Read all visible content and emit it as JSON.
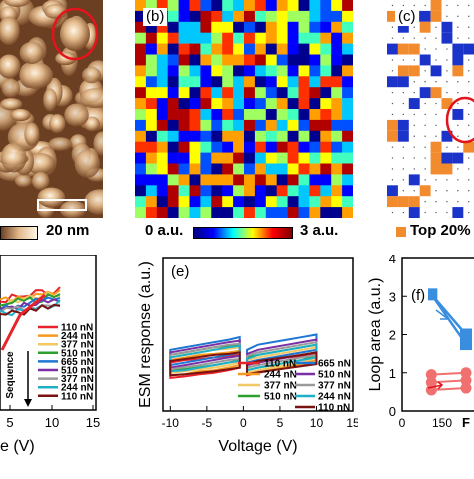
{
  "panels": {
    "a": {
      "scale_bar": "20 nm"
    },
    "b": {
      "label": "(b)",
      "scale_min": "0 a.u.",
      "scale_max": "3 a.u."
    },
    "c": {
      "label": "(c)",
      "legend": "Top 20%"
    },
    "d": {
      "legend": [
        "110 nN",
        "244 nN",
        "377 nN",
        "510 nN",
        "665 nN",
        "510 nN",
        "377 nN",
        "244 nN",
        "110 nN"
      ],
      "sequence_label": "Sequence",
      "xlabel_fragment": "e (V)",
      "xticks": [
        "5",
        "10",
        "15"
      ]
    },
    "e": {
      "label": "(e)",
      "legend_left": [
        "110 nN",
        "244 nN",
        "377 nN",
        "510 nN"
      ],
      "legend_right": [
        "665 nN",
        "510 nN",
        "377 nN",
        "244 nN",
        "110 nN"
      ],
      "xlabel": "Voltage (V)",
      "ylabel": "ESM response (a.u.)",
      "xticks": [
        "-10",
        "-5",
        "0",
        "5",
        "10",
        "15"
      ]
    },
    "f": {
      "label": "(f)",
      "ylabel": "Loop area (a.u.)",
      "yticks": [
        "4",
        "3",
        "2",
        "1",
        "0"
      ],
      "xticks": [
        "0",
        "150"
      ],
      "xlabel_fragment": "F"
    }
  },
  "colors": {
    "110": "#e8232a",
    "244": "#f59a1e",
    "377": "#f2c867",
    "510": "#2ca02c",
    "665": "#1f77d4",
    "510b": "#7b2fa5",
    "377b": "#9a9a9a",
    "244b": "#1fb0c8",
    "110b": "#7a1212",
    "square": "#3a8ee0",
    "circle": "#f07070",
    "top20": "#f28a2e",
    "blue_cell": "#1b33c9"
  },
  "chart_data": [
    {
      "type": "line",
      "panel": "e",
      "xlabel": "Voltage (V)",
      "ylabel": "ESM response (a.u.)",
      "xlim": [
        -11,
        15
      ],
      "ylim": [
        0,
        3
      ],
      "x": [
        -10,
        -8,
        -6,
        -4,
        -2,
        -0.5,
        0.5,
        2,
        4,
        6,
        8,
        10
      ],
      "series": [
        {
          "name": "110 nN",
          "upper": [
            0.95,
            1.0,
            1.02,
            1.05,
            1.08,
            1.1,
            0.9,
            0.95,
            1.0,
            1.05,
            1.08,
            1.12
          ],
          "lower": [
            0.65,
            0.68,
            0.72,
            0.75,
            0.8,
            0.85,
            0.7,
            0.75,
            0.8,
            0.85,
            0.9,
            0.95
          ]
        },
        {
          "name": "244 nN",
          "upper": [
            1.0,
            1.05,
            1.1,
            1.12,
            1.15,
            1.18,
            0.95,
            1.0,
            1.05,
            1.1,
            1.15,
            1.2
          ],
          "lower": [
            0.7,
            0.72,
            0.78,
            0.8,
            0.85,
            0.9,
            0.72,
            0.78,
            0.82,
            0.88,
            0.92,
            1.0
          ]
        },
        {
          "name": "377 nN",
          "upper": [
            1.05,
            1.1,
            1.15,
            1.2,
            1.22,
            1.25,
            1.0,
            1.05,
            1.1,
            1.15,
            1.2,
            1.25
          ],
          "lower": [
            0.75,
            0.78,
            0.82,
            0.85,
            0.9,
            0.95,
            0.75,
            0.8,
            0.85,
            0.9,
            0.95,
            1.05
          ]
        },
        {
          "name": "510 nN",
          "upper": [
            1.1,
            1.15,
            1.2,
            1.25,
            1.28,
            1.3,
            1.05,
            1.1,
            1.15,
            1.2,
            1.25,
            1.3
          ],
          "lower": [
            0.8,
            0.82,
            0.86,
            0.9,
            0.95,
            1.0,
            0.8,
            0.85,
            0.9,
            0.95,
            1.0,
            1.1
          ]
        },
        {
          "name": "665 nN",
          "upper": [
            1.2,
            1.25,
            1.3,
            1.35,
            1.4,
            1.45,
            1.2,
            1.3,
            1.35,
            1.4,
            1.45,
            1.5
          ],
          "lower": [
            0.9,
            0.95,
            1.0,
            1.05,
            1.1,
            1.15,
            0.95,
            1.0,
            1.05,
            1.1,
            1.15,
            1.2
          ]
        },
        {
          "name": "510 nN",
          "upper": [
            1.15,
            1.2,
            1.25,
            1.3,
            1.35,
            1.38,
            1.12,
            1.2,
            1.25,
            1.3,
            1.35,
            1.4
          ],
          "lower": [
            0.85,
            0.9,
            0.95,
            1.0,
            1.05,
            1.08,
            0.9,
            0.95,
            1.0,
            1.05,
            1.1,
            1.15
          ]
        },
        {
          "name": "377 nN",
          "upper": [
            1.1,
            1.15,
            1.2,
            1.25,
            1.3,
            1.32,
            1.08,
            1.15,
            1.2,
            1.25,
            1.3,
            1.35
          ],
          "lower": [
            0.82,
            0.86,
            0.9,
            0.95,
            1.0,
            1.02,
            0.85,
            0.9,
            0.95,
            1.0,
            1.05,
            1.1
          ]
        },
        {
          "name": "244 nN",
          "upper": [
            1.05,
            1.1,
            1.15,
            1.2,
            1.25,
            1.28,
            1.02,
            1.1,
            1.15,
            1.2,
            1.25,
            1.3
          ],
          "lower": [
            0.78,
            0.8,
            0.85,
            0.9,
            0.95,
            0.98,
            0.8,
            0.85,
            0.9,
            0.95,
            1.0,
            1.05
          ]
        },
        {
          "name": "110 nN",
          "upper": [
            0.98,
            1.02,
            1.06,
            1.1,
            1.12,
            1.15,
            0.92,
            0.98,
            1.02,
            1.06,
            1.1,
            1.15
          ],
          "lower": [
            0.7,
            0.72,
            0.75,
            0.78,
            0.82,
            0.85,
            0.72,
            0.76,
            0.8,
            0.84,
            0.88,
            0.92
          ]
        }
      ]
    },
    {
      "type": "scatter",
      "panel": "f",
      "ylabel": "Loop area (a.u.)",
      "ylim": [
        0,
        4
      ],
      "series": [
        {
          "marker": "square",
          "points": [
            [
              110,
              3.05
            ],
            [
              240,
              1.75
            ],
            [
              240,
              2.0
            ]
          ]
        },
        {
          "marker": "circle",
          "points": [
            [
              110,
              0.55
            ],
            [
              110,
              0.75
            ],
            [
              110,
              0.95
            ],
            [
              240,
              0.6
            ],
            [
              240,
              0.8
            ],
            [
              240,
              1.0
            ]
          ]
        }
      ]
    }
  ]
}
